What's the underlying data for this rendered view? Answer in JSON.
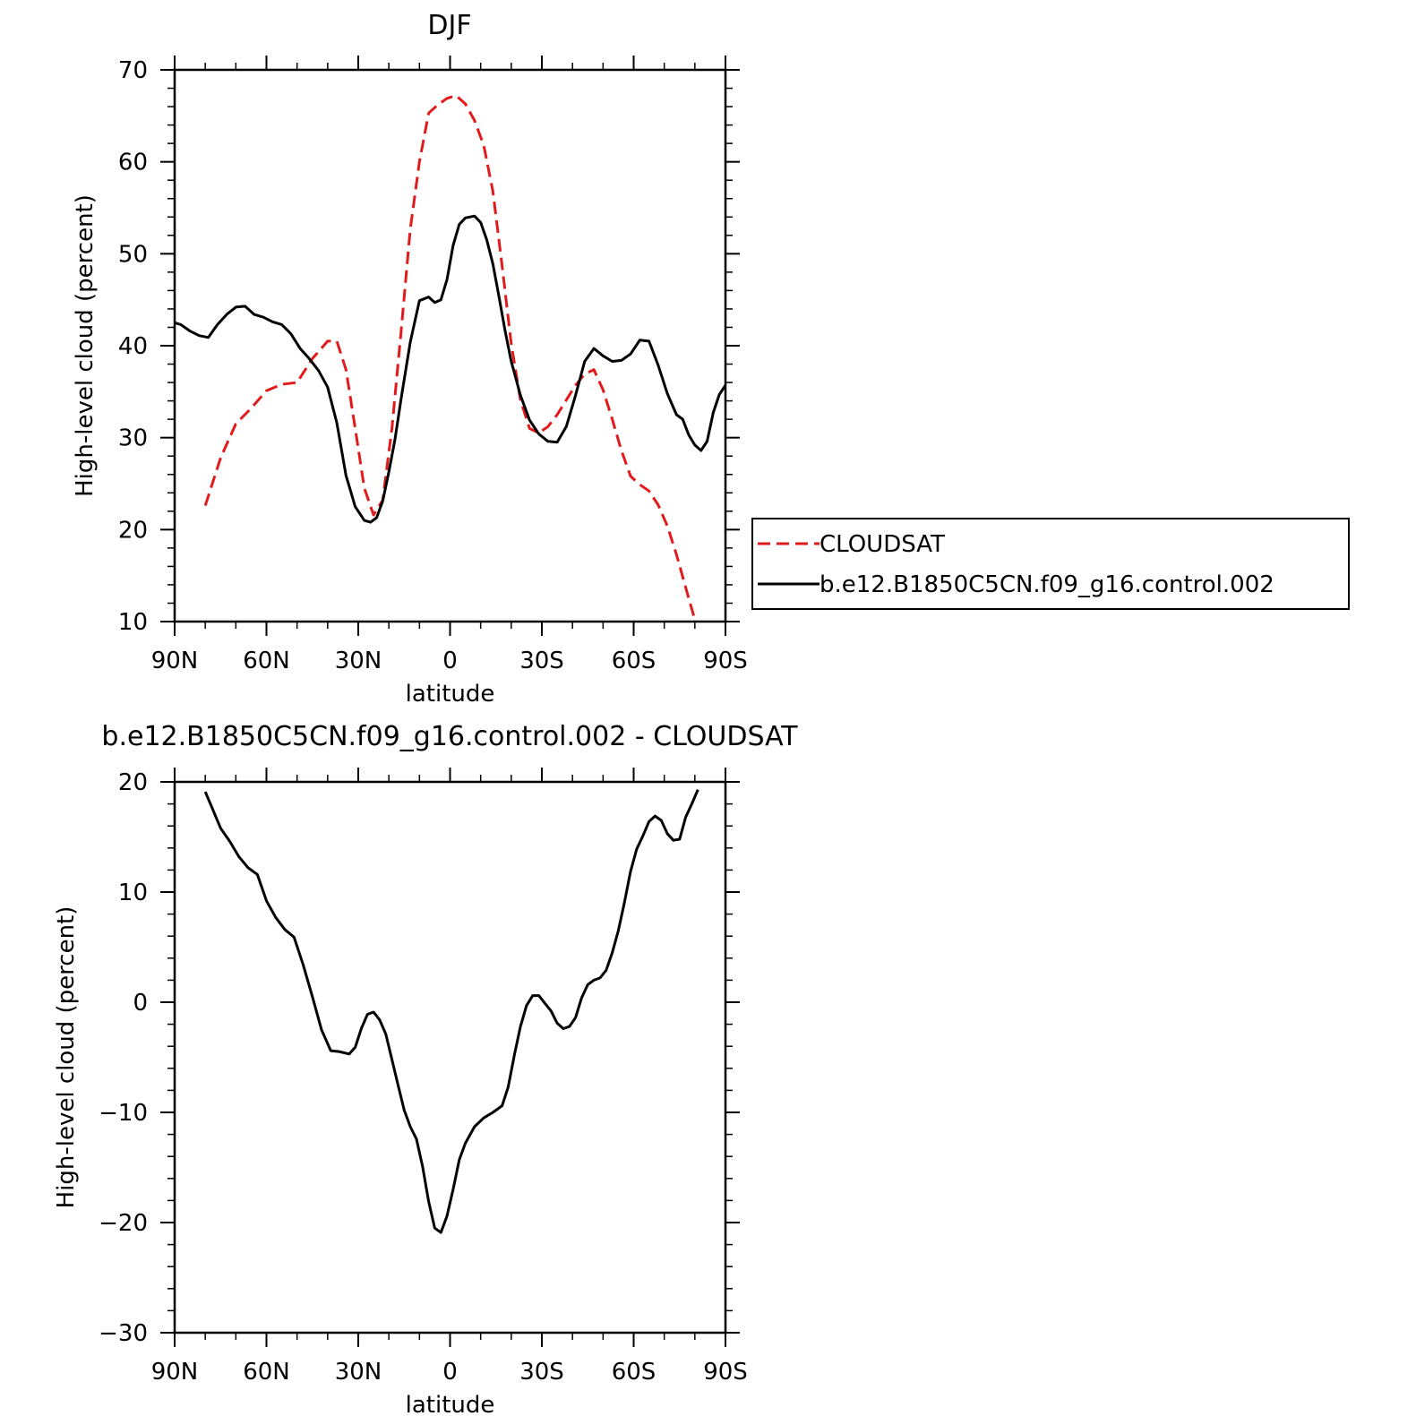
{
  "chart_data": [
    {
      "type": "line",
      "title": "DJF",
      "xlabel": "latitude",
      "ylabel": "High-level cloud (percent)",
      "xlim": [
        -90,
        90
      ],
      "ylim": [
        10,
        70
      ],
      "xticks": [
        -90,
        -60,
        -30,
        0,
        30,
        60,
        90
      ],
      "xtick_labels": [
        "90N",
        "60N",
        "30N",
        "0",
        "30S",
        "60S",
        "90S"
      ],
      "yticks": [
        10,
        20,
        30,
        40,
        50,
        60,
        70
      ],
      "ytick_labels": [
        "10",
        "20",
        "30",
        "40",
        "50",
        "60",
        "70"
      ],
      "legend_position": "right",
      "series": [
        {
          "name": "CLOUDSAT",
          "color": "#e31a1c",
          "dash": "dashed",
          "x": [
            -80,
            -75,
            -70,
            -65,
            -60,
            -55,
            -50,
            -45,
            -40,
            -37,
            -34,
            -31,
            -28,
            -25,
            -22,
            -19,
            -16,
            -13,
            -10,
            -7,
            -4,
            -1,
            2,
            5,
            8,
            11,
            14,
            17,
            20,
            23,
            26,
            29,
            32,
            35,
            38,
            41,
            44,
            47,
            50,
            53,
            56,
            59,
            62,
            65,
            68,
            71,
            74,
            77,
            80,
            81
          ],
          "y": [
            22.6,
            27.8,
            31.5,
            33.2,
            35.1,
            35.8,
            36.0,
            38.6,
            40.5,
            40.5,
            37.4,
            31.0,
            24.5,
            21.6,
            23.2,
            31.0,
            41.5,
            52.7,
            60.0,
            65.3,
            66.2,
            66.9,
            67.2,
            66.3,
            64.5,
            61.8,
            56.8,
            48.7,
            40.2,
            34.1,
            31.0,
            30.5,
            31.2,
            32.5,
            34.1,
            35.7,
            36.9,
            37.4,
            35.2,
            32.0,
            28.6,
            25.8,
            24.9,
            24.2,
            22.7,
            20.4,
            17.3,
            13.7,
            10.2,
            9.7
          ]
        },
        {
          "name": "b.e12.B1850C5CN.f09_g16.control.002",
          "color": "#000000",
          "dash": "solid",
          "x": [
            -90,
            -88,
            -85,
            -82,
            -79,
            -76,
            -73,
            -70,
            -67,
            -64,
            -61,
            -58,
            -55,
            -52,
            -49,
            -46,
            -43,
            -40,
            -37,
            -34,
            -31,
            -28,
            -26,
            -24,
            -22,
            -20,
            -18,
            -16,
            -13,
            -10,
            -7,
            -5,
            -3,
            -1,
            1,
            3,
            5,
            8,
            10,
            12,
            14,
            16,
            18,
            20,
            23,
            26,
            29,
            32,
            35,
            38,
            41,
            44,
            47,
            50,
            53,
            56,
            59,
            62,
            65,
            68,
            71,
            74,
            76,
            78,
            80,
            82,
            84,
            86,
            88,
            90
          ],
          "y": [
            42.5,
            42.3,
            41.6,
            41.1,
            40.9,
            42.3,
            43.4,
            44.2,
            44.3,
            43.4,
            43.1,
            42.6,
            42.3,
            41.3,
            39.7,
            38.6,
            37.3,
            35.5,
            31.6,
            25.9,
            22.5,
            21.0,
            20.8,
            21.3,
            23.1,
            26.3,
            29.8,
            34.2,
            40.4,
            44.9,
            45.3,
            44.7,
            45.0,
            47.2,
            50.9,
            53.2,
            53.9,
            54.1,
            53.4,
            51.5,
            48.9,
            45.3,
            41.6,
            38.3,
            34.6,
            31.9,
            30.4,
            29.6,
            29.5,
            31.2,
            34.6,
            38.3,
            39.7,
            38.9,
            38.3,
            38.4,
            39.1,
            40.6,
            40.5,
            37.9,
            34.8,
            32.5,
            32.0,
            30.3,
            29.2,
            28.6,
            29.6,
            32.7,
            34.7,
            35.7
          ]
        }
      ]
    },
    {
      "type": "line",
      "title": "b.e12.B1850C5CN.f09_g16.control.002 - CLOUDSAT",
      "xlabel": "latitude",
      "ylabel": "High-level cloud (percent)",
      "xlim": [
        -90,
        90
      ],
      "ylim": [
        -30,
        20
      ],
      "xticks": [
        -90,
        -60,
        -30,
        0,
        30,
        60,
        90
      ],
      "xtick_labels": [
        "90N",
        "60N",
        "30N",
        "0",
        "30S",
        "60S",
        "90S"
      ],
      "yticks": [
        -30,
        -20,
        -10,
        0,
        10,
        20
      ],
      "ytick_labels": [
        "−30",
        "−20",
        "−10",
        "0",
        "10",
        "20"
      ],
      "series": [
        {
          "color": "#000000",
          "dash": "solid",
          "x": [
            -80,
            -78,
            -75,
            -72,
            -69,
            -66,
            -63,
            -60,
            -57,
            -54,
            -51,
            -48,
            -45,
            -42,
            -39,
            -36,
            -33,
            -31,
            -29,
            -27,
            -25,
            -23,
            -21,
            -19,
            -17,
            -15,
            -13,
            -11,
            -9,
            -7,
            -5,
            -3,
            -1,
            1,
            3,
            5,
            8,
            11,
            14,
            17,
            19,
            21,
            23,
            25,
            27,
            29,
            31,
            33,
            35,
            37,
            39,
            41,
            43,
            45,
            47,
            49,
            51,
            53,
            55,
            57,
            59,
            61,
            63,
            65,
            67,
            69,
            71,
            73,
            75,
            77,
            79,
            81
          ],
          "y": [
            19.1,
            17.8,
            15.8,
            14.6,
            13.2,
            12.2,
            11.6,
            9.2,
            7.7,
            6.6,
            5.9,
            3.4,
            0.5,
            -2.5,
            -4.4,
            -4.5,
            -4.7,
            -4.1,
            -2.4,
            -1.1,
            -0.9,
            -1.6,
            -2.9,
            -5.2,
            -7.5,
            -9.8,
            -11.3,
            -12.4,
            -14.9,
            -18.1,
            -20.5,
            -20.9,
            -19.4,
            -17.0,
            -14.3,
            -12.8,
            -11.3,
            -10.5,
            -10.0,
            -9.4,
            -7.7,
            -4.8,
            -2.2,
            -0.3,
            0.6,
            0.6,
            -0.1,
            -0.8,
            -1.9,
            -2.4,
            -2.2,
            -1.4,
            0.4,
            1.6,
            2.0,
            2.2,
            2.9,
            4.5,
            6.5,
            9.1,
            11.9,
            13.9,
            15.1,
            16.4,
            16.9,
            16.5,
            15.3,
            14.7,
            14.8,
            16.8,
            18.0,
            19.3
          ]
        }
      ]
    }
  ],
  "legend": {
    "items": [
      {
        "label": "CLOUDSAT"
      },
      {
        "label": "b.e12.B1850C5CN.f09_g16.control.002"
      }
    ]
  }
}
